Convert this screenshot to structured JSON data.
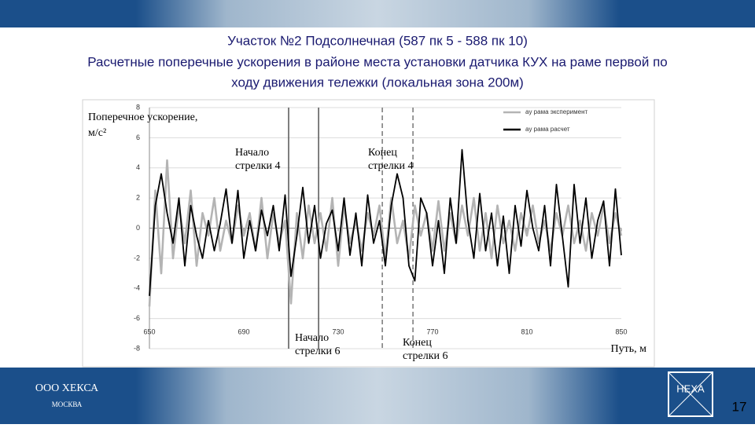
{
  "header": {
    "title_lines": [
      "Участок №2 Подсолнечная (587 пк 5 - 588 пк 10)",
      "Расчетные поперечные ускорения в районе места установки датчика КУХ на раме первой по",
      "ходу движения тележки (локальная зона 200м)"
    ]
  },
  "chart_data": {
    "type": "line",
    "ylabel": [
      "Поперечное ускорение,",
      "м/с²"
    ],
    "xlabel": "Путь, м",
    "xlim": [
      650,
      850
    ],
    "xticks": [
      650,
      690,
      730,
      770,
      810,
      850
    ],
    "ylim": [
      -8,
      8
    ],
    "yticks": [
      -8,
      -6,
      -4,
      -2,
      0,
      2,
      4,
      6,
      8
    ],
    "legend": "upper right",
    "x": [
      650,
      652.5,
      655,
      657.5,
      660,
      662.5,
      665,
      667.5,
      670,
      672.5,
      675,
      677.5,
      680,
      682.5,
      685,
      687.5,
      690,
      692.5,
      695,
      697.5,
      700,
      702.5,
      705,
      707.5,
      710,
      712.5,
      715,
      717.5,
      720,
      722.5,
      725,
      727.5,
      730,
      732.5,
      735,
      737.5,
      740,
      742.5,
      745,
      747.5,
      750,
      752.5,
      755,
      757.5,
      760,
      762.5,
      765,
      767.5,
      770,
      772.5,
      775,
      777.5,
      780,
      782.5,
      785,
      787.5,
      790,
      792.5,
      795,
      797.5,
      800,
      802.5,
      805,
      807.5,
      810,
      812.5,
      815,
      817.5,
      820,
      822.5,
      825,
      827.5,
      830,
      832.5,
      835,
      837.5,
      840,
      842.5,
      845,
      847.5,
      850
    ],
    "series": [
      {
        "name": "ay рама эксперимент",
        "color": "#b4b4b4",
        "values": [
          -5.2,
          2.5,
          -3.0,
          4.5,
          -2.0,
          1.5,
          -1.0,
          2.5,
          -2.5,
          1.0,
          -0.5,
          2.0,
          -1.5,
          0.5,
          -1.0,
          1.5,
          -0.5,
          1.0,
          -1.5,
          2.0,
          -2.0,
          1.0,
          -1.0,
          0.5,
          -5.0,
          1.0,
          -2.0,
          1.5,
          -1.0,
          1.0,
          -1.5,
          2.0,
          -2.5,
          1.5,
          -1.0,
          0.5,
          -1.5,
          1.0,
          -0.5,
          1.5,
          -2.0,
          2.0,
          -1.0,
          0.5,
          -2.0,
          1.5,
          -0.5,
          1.0,
          -1.5,
          1.8,
          -1.5,
          1.0,
          -1.0,
          1.5,
          -0.5,
          2.0,
          -1.5,
          1.0,
          -2.0,
          1.5,
          -1.0,
          0.5,
          -1.5,
          1.0,
          -0.5,
          1.5,
          -1.0,
          0.5,
          -1.5,
          1.0,
          -0.5,
          1.5,
          -1.0,
          0.5,
          -1.5,
          1.0,
          -0.5,
          1.5,
          -1.0,
          1.0,
          -0.5
        ]
      },
      {
        "name": "ay рама расчет",
        "color": "#000000",
        "values": [
          -4.5,
          1.5,
          3.6,
          1.0,
          -1.0,
          2.0,
          -2.5,
          1.5,
          -0.5,
          -2.0,
          0.5,
          -1.5,
          0.3,
          2.6,
          -1.0,
          2.5,
          -2.0,
          0.5,
          -1.5,
          1.2,
          -0.5,
          1.5,
          -1.5,
          2.2,
          -3.2,
          -0.5,
          2.7,
          -1.0,
          1.5,
          -2.0,
          0.3,
          1.2,
          -1.5,
          2.0,
          -1.8,
          1.0,
          -2.5,
          2.2,
          -1.0,
          0.5,
          -2.5,
          1.5,
          3.6,
          2.0,
          -2.5,
          -3.5,
          2.0,
          1.0,
          -2.5,
          0.5,
          -3.0,
          2.0,
          -1.0,
          5.2,
          0.5,
          -2.0,
          2.3,
          -1.5,
          1.0,
          -2.5,
          0.8,
          -3.0,
          1.5,
          -1.2,
          2.5,
          0.0,
          -1.5,
          1.5,
          -2.5,
          2.9,
          -0.5,
          -3.9,
          2.9,
          -1.0,
          2.0,
          -2.0,
          0.5,
          1.8,
          -2.5,
          2.6,
          -1.8
        ]
      }
    ],
    "markers": [
      {
        "x": 709,
        "style": "solid"
      },
      {
        "x": 721.7,
        "style": "solid"
      },
      {
        "x": 748.7,
        "style": "dashed"
      },
      {
        "x": 761.7,
        "style": "dashed"
      }
    ],
    "annotations": [
      {
        "lines": [
          "Начало",
          "стрелки 4"
        ]
      },
      {
        "lines": [
          "Конец",
          "стрелки 4"
        ]
      },
      {
        "lines": [
          "Начало",
          "стрелки 6"
        ]
      },
      {
        "lines": [
          "Конец",
          "стрелки 6"
        ]
      }
    ]
  },
  "footer": {
    "company": "ООО ХЕКСА",
    "city": "МОСКВА",
    "logo": "HEXA",
    "page": "17"
  }
}
